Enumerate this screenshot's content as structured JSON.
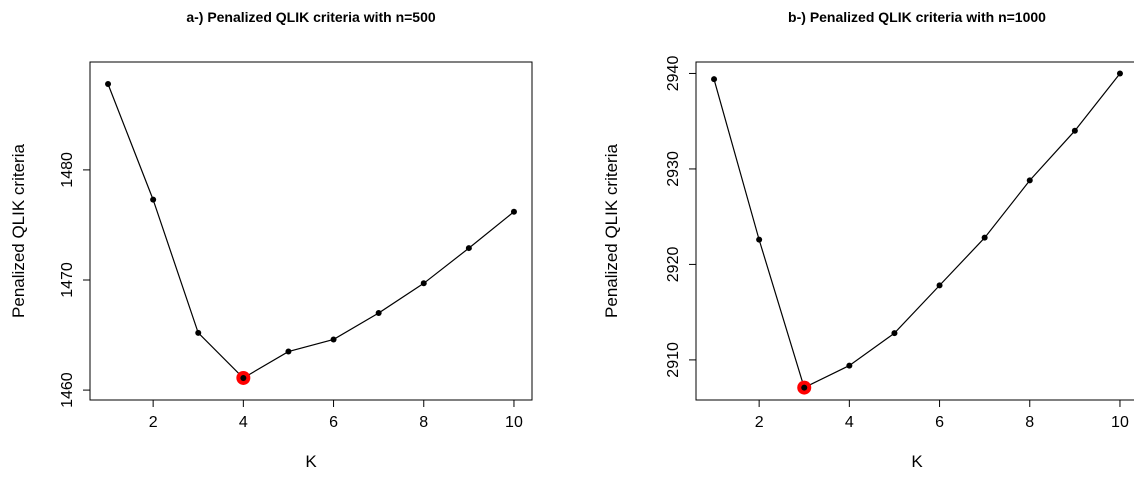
{
  "chart_data": [
    {
      "type": "line",
      "title": "a-) Penalized QLIK criteria with n=500",
      "xlabel": "K",
      "ylabel": "Penalized QLIK criteria",
      "x": [
        1,
        2,
        3,
        4,
        5,
        6,
        7,
        8,
        9,
        10
      ],
      "series": [
        {
          "values": [
            1487.8,
            1477.3,
            1465.2,
            1461.1,
            1463.5,
            1464.6,
            1467.0,
            1469.7,
            1472.9,
            1476.2
          ]
        }
      ],
      "highlight": {
        "x": 4,
        "y": 1461.1,
        "color": "#ff0000"
      },
      "xlim": [
        0.6,
        10.4
      ],
      "ylim": [
        1459.1,
        1489.8
      ],
      "xticks": [
        "2",
        "4",
        "6",
        "8",
        "10"
      ],
      "yticks": [
        "1460",
        "1470",
        "1480"
      ],
      "grid": false,
      "legend": "none"
    },
    {
      "type": "line",
      "title": "b-) Penalized QLIK criteria with n=1000",
      "xlabel": "K",
      "ylabel": "Penalized QLIK criteria",
      "x": [
        1,
        2,
        3,
        4,
        5,
        6,
        7,
        8,
        9,
        10
      ],
      "series": [
        {
          "values": [
            2939.4,
            2922.6,
            2907.1,
            2909.4,
            2912.8,
            2917.8,
            2922.8,
            2928.8,
            2934.0,
            2940.0
          ]
        }
      ],
      "highlight": {
        "x": 3,
        "y": 2907.1,
        "color": "#ff0000"
      },
      "xlim": [
        0.6,
        10.4
      ],
      "ylim": [
        2905.8,
        2941.2
      ],
      "xticks": [
        "2",
        "4",
        "6",
        "8",
        "10"
      ],
      "yticks": [
        "2910",
        "2920",
        "2930",
        "2940"
      ],
      "grid": false,
      "legend": "none"
    }
  ]
}
